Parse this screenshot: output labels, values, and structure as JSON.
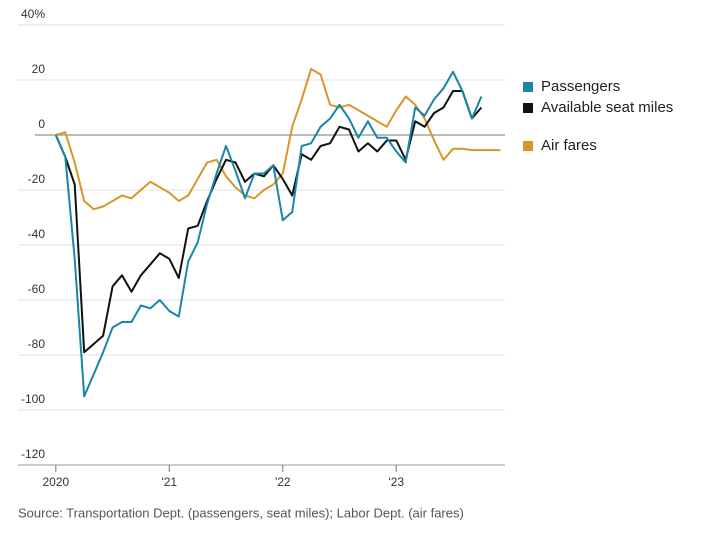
{
  "chart_data": {
    "type": "line",
    "source": "Source: Transportation Dept. (passengers, seat miles); Labor Dept. (air fares)",
    "x": [
      0,
      1,
      2,
      3,
      4,
      5,
      6,
      7,
      8,
      9,
      10,
      11,
      12,
      13,
      14,
      15,
      16,
      17,
      18,
      19,
      20,
      21,
      22,
      23,
      24,
      25,
      26,
      27,
      28,
      29,
      30,
      31,
      32,
      33,
      34,
      35,
      36,
      37,
      38,
      39,
      40,
      41,
      42,
      43,
      44,
      45,
      46,
      47
    ],
    "xlim": [
      -4,
      47.5
    ],
    "xticks": [
      {
        "value": 0,
        "label": "2020"
      },
      {
        "value": 12,
        "label": "'21"
      },
      {
        "value": 24,
        "label": "'22"
      },
      {
        "value": 36,
        "label": "'23"
      }
    ],
    "ylim": [
      -120,
      40
    ],
    "yticks": [
      {
        "value": 40,
        "label": "40%"
      },
      20,
      0,
      -20,
      -40,
      -60,
      -80,
      -100,
      -120
    ],
    "grid": true,
    "legend": "right",
    "series": [
      {
        "name": "Passengers",
        "color": "#1a86a6",
        "values": [
          0,
          -8,
          -45,
          -95,
          -87,
          -79,
          -70,
          -68,
          -68,
          -62,
          -63,
          -60,
          -64,
          -66,
          -46,
          -39,
          -25,
          -14,
          -4,
          -13,
          -23,
          -14,
          -14,
          -11,
          -31,
          -28,
          -4,
          -3,
          3,
          6,
          11,
          6,
          -1,
          5,
          -1,
          -1,
          -6,
          -10,
          10,
          7,
          13,
          17,
          23,
          16,
          6,
          14,
          null,
          null
        ]
      },
      {
        "name": "Available seat miles",
        "color": "#111111",
        "values": [
          0,
          -8,
          -18,
          -79,
          -76,
          -73,
          -55,
          -51,
          -57,
          -51,
          -47,
          -43,
          -45,
          -52,
          -34,
          -33,
          -24,
          -16,
          -9,
          -10,
          -17,
          -14,
          -15,
          -11,
          -16,
          -22,
          -7,
          -9,
          -4,
          -3,
          3,
          2,
          -6,
          -3,
          -6,
          -2,
          -2,
          -9,
          5,
          3,
          8,
          10,
          16,
          16,
          6,
          10,
          null,
          null
        ]
      },
      {
        "name": "Air fares",
        "color": "#d9962b",
        "values": [
          0,
          1,
          -10,
          -24,
          -27,
          -26,
          -24,
          -22,
          -23,
          -20,
          -17,
          -19,
          -21,
          -24,
          -22,
          -16,
          -10,
          -9,
          -15,
          -19,
          -22,
          -23,
          -20,
          -18,
          -14,
          3,
          13,
          24,
          22,
          11,
          10,
          11,
          9,
          7,
          5,
          3,
          9,
          14,
          11,
          6,
          -2,
          -9,
          -5,
          -5,
          -5.5,
          -5.5,
          -5.5,
          -5.5
        ]
      }
    ]
  }
}
